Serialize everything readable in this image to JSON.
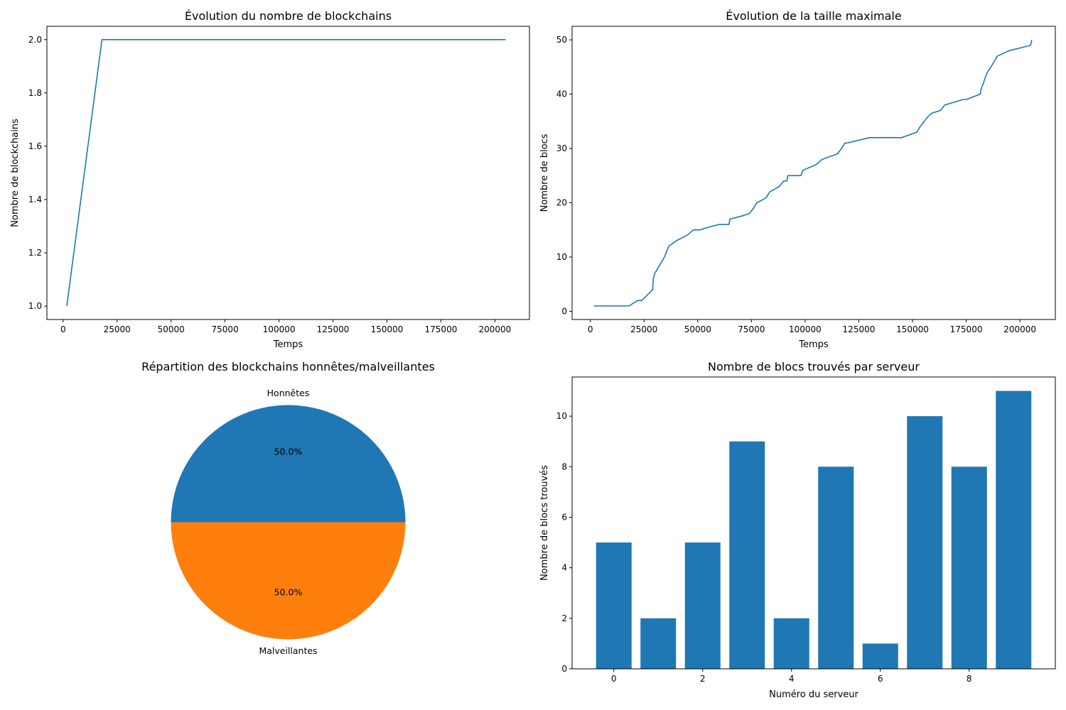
{
  "colors": {
    "blue": "#1f77b4",
    "orange": "#ff7f0e"
  },
  "chart_data": [
    {
      "id": "count",
      "type": "line",
      "title": "Évolution du nombre de blockchains",
      "xlabel": "Temps",
      "ylabel": "Nombre de blockchains",
      "xlim": [
        -7500,
        216000
      ],
      "ylim": [
        0.95,
        2.05
      ],
      "xticks": [
        0,
        25000,
        50000,
        75000,
        100000,
        125000,
        150000,
        175000,
        200000
      ],
      "yticks": [
        1.0,
        1.2,
        1.4,
        1.6,
        1.8,
        2.0
      ],
      "xtick_labels": [
        "0",
        "25000",
        "50000",
        "75000",
        "100000",
        "125000",
        "150000",
        "175000",
        "200000"
      ],
      "ytick_labels": [
        "1.0",
        "1.2",
        "1.4",
        "1.6",
        "1.8",
        "2.0"
      ],
      "series": [
        {
          "x": [
            1700,
            18000,
            205000
          ],
          "y": [
            1,
            2,
            2
          ]
        }
      ]
    },
    {
      "id": "size",
      "type": "line",
      "title": "Évolution de la taille maximale",
      "xlabel": "Temps",
      "ylabel": "Nombre de blocs",
      "xlim": [
        -8500,
        216500
      ],
      "ylim": [
        -1.5,
        52.5
      ],
      "xticks": [
        0,
        25000,
        50000,
        75000,
        100000,
        125000,
        150000,
        175000,
        200000
      ],
      "yticks": [
        0,
        10,
        20,
        30,
        40,
        50
      ],
      "xtick_labels": [
        "0",
        "25000",
        "50000",
        "75000",
        "100000",
        "125000",
        "150000",
        "175000",
        "200000"
      ],
      "ytick_labels": [
        "0",
        "10",
        "20",
        "30",
        "40",
        "50"
      ],
      "series": [
        {
          "x": [
            1700,
            18000,
            22000,
            24000,
            29000,
            29300,
            30000,
            31500,
            33000,
            34500,
            35500,
            36500,
            40000,
            45000,
            48000,
            51000,
            55000,
            60000,
            64500,
            65000,
            70000,
            74000,
            76000,
            77500,
            80000,
            82000,
            83500,
            88000,
            90000,
            91500,
            92000,
            92500,
            98000,
            99000,
            105000,
            108000,
            115000,
            117000,
            118500,
            119500,
            130000,
            145000,
            152000,
            153500,
            155500,
            157500,
            159000,
            163000,
            165000,
            173500,
            175000,
            181500,
            182000,
            183000,
            183800,
            184800,
            186500,
            188000,
            189500,
            195000,
            200000,
            205000,
            205500
          ],
          "y": [
            1,
            1,
            2,
            2,
            4,
            6,
            7,
            8,
            9,
            10,
            11,
            12,
            13,
            14,
            15,
            15,
            15.5,
            16,
            16,
            17,
            17.5,
            18,
            19,
            20,
            20.5,
            21,
            22,
            23,
            24,
            24,
            25,
            25,
            25,
            26,
            27,
            28,
            29,
            30,
            31,
            31,
            32,
            32,
            33,
            34,
            35,
            36,
            36.5,
            37,
            38,
            39,
            39,
            40,
            41,
            42,
            43,
            44,
            45,
            46,
            47,
            48,
            48.5,
            49,
            50
          ]
        }
      ]
    },
    {
      "id": "pie",
      "type": "pie",
      "title": "Répartition des blockchains honnêtes/malveillantes",
      "labels": [
        "Honnêtes",
        "Malveillantes"
      ],
      "values": [
        50,
        50
      ],
      "pct_labels": [
        "50.0%",
        "50.0%"
      ],
      "colors": [
        "#1f77b4",
        "#ff7f0e"
      ]
    },
    {
      "id": "bar",
      "type": "bar",
      "title": "Nombre de blocs trouvés par serveur",
      "xlabel": "Numéro du serveur",
      "ylabel": "Nombre de blocs trouvés",
      "categories": [
        0,
        1,
        2,
        3,
        4,
        5,
        6,
        7,
        8,
        9
      ],
      "values": [
        5,
        2,
        5,
        9,
        2,
        8,
        1,
        10,
        8,
        11
      ],
      "xlim": [
        -0.94,
        9.94
      ],
      "ylim": [
        0,
        11.55
      ],
      "xticks": [
        0,
        2,
        4,
        6,
        8
      ],
      "yticks": [
        0,
        2,
        4,
        6,
        8,
        10
      ],
      "xtick_labels": [
        "0",
        "2",
        "4",
        "6",
        "8"
      ],
      "ytick_labels": [
        "0",
        "2",
        "4",
        "6",
        "8",
        "10"
      ]
    }
  ]
}
